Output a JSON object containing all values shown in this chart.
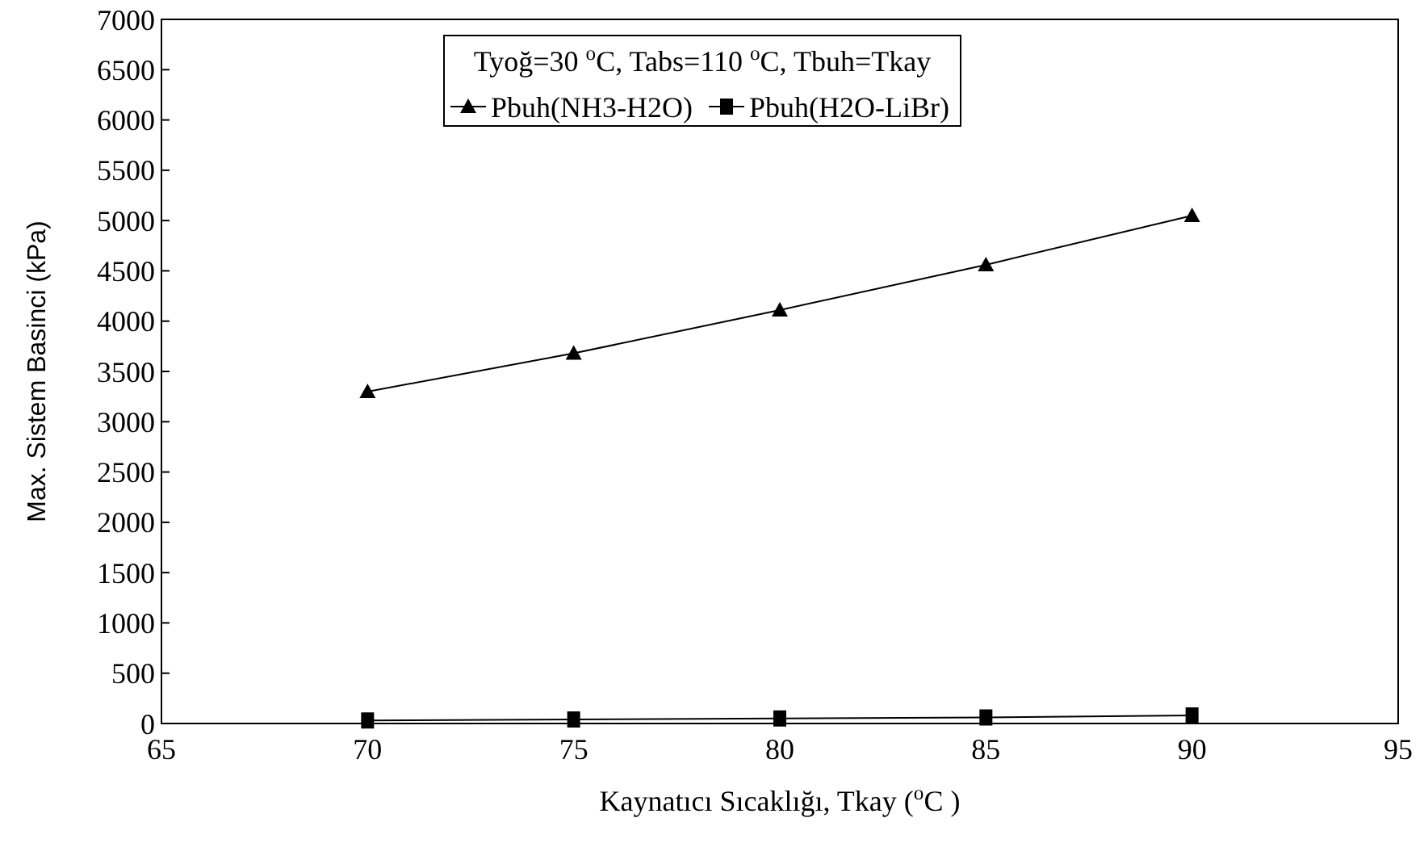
{
  "chart_data": {
    "type": "line",
    "xlabel": "Kaynatıcı Sıcaklığı, Tkay ($^{o}$C )",
    "ylabel": "Max. Sistem Basinci (kPa)",
    "legend_title": "Tyoğ=30 $^{o}$C, Tabs=110 $^{o}$C, Tbuh=Tkay",
    "legend": "top",
    "x": [
      70,
      75,
      80,
      85,
      90
    ],
    "series": [
      {
        "name": "Pbuh(NH3-H2O)",
        "color": "#000000",
        "marker": "triangle",
        "values": [
          3300,
          3680,
          4110,
          4560,
          5050
        ]
      },
      {
        "name": "Pbuh(H2O-LiBr)",
        "color": "#000000",
        "marker": "square",
        "values": [
          30,
          40,
          50,
          60,
          80
        ]
      }
    ],
    "xlim": [
      65,
      95
    ],
    "xticks": [
      65,
      70,
      75,
      80,
      85,
      90,
      95
    ],
    "ylim": [
      0,
      7000
    ],
    "yticks": [
      0,
      500,
      1000,
      1500,
      2000,
      2500,
      3000,
      3500,
      4000,
      4500,
      5000,
      5500,
      6000,
      6500,
      7000
    ],
    "grid": false,
    "line_style": "solid"
  }
}
